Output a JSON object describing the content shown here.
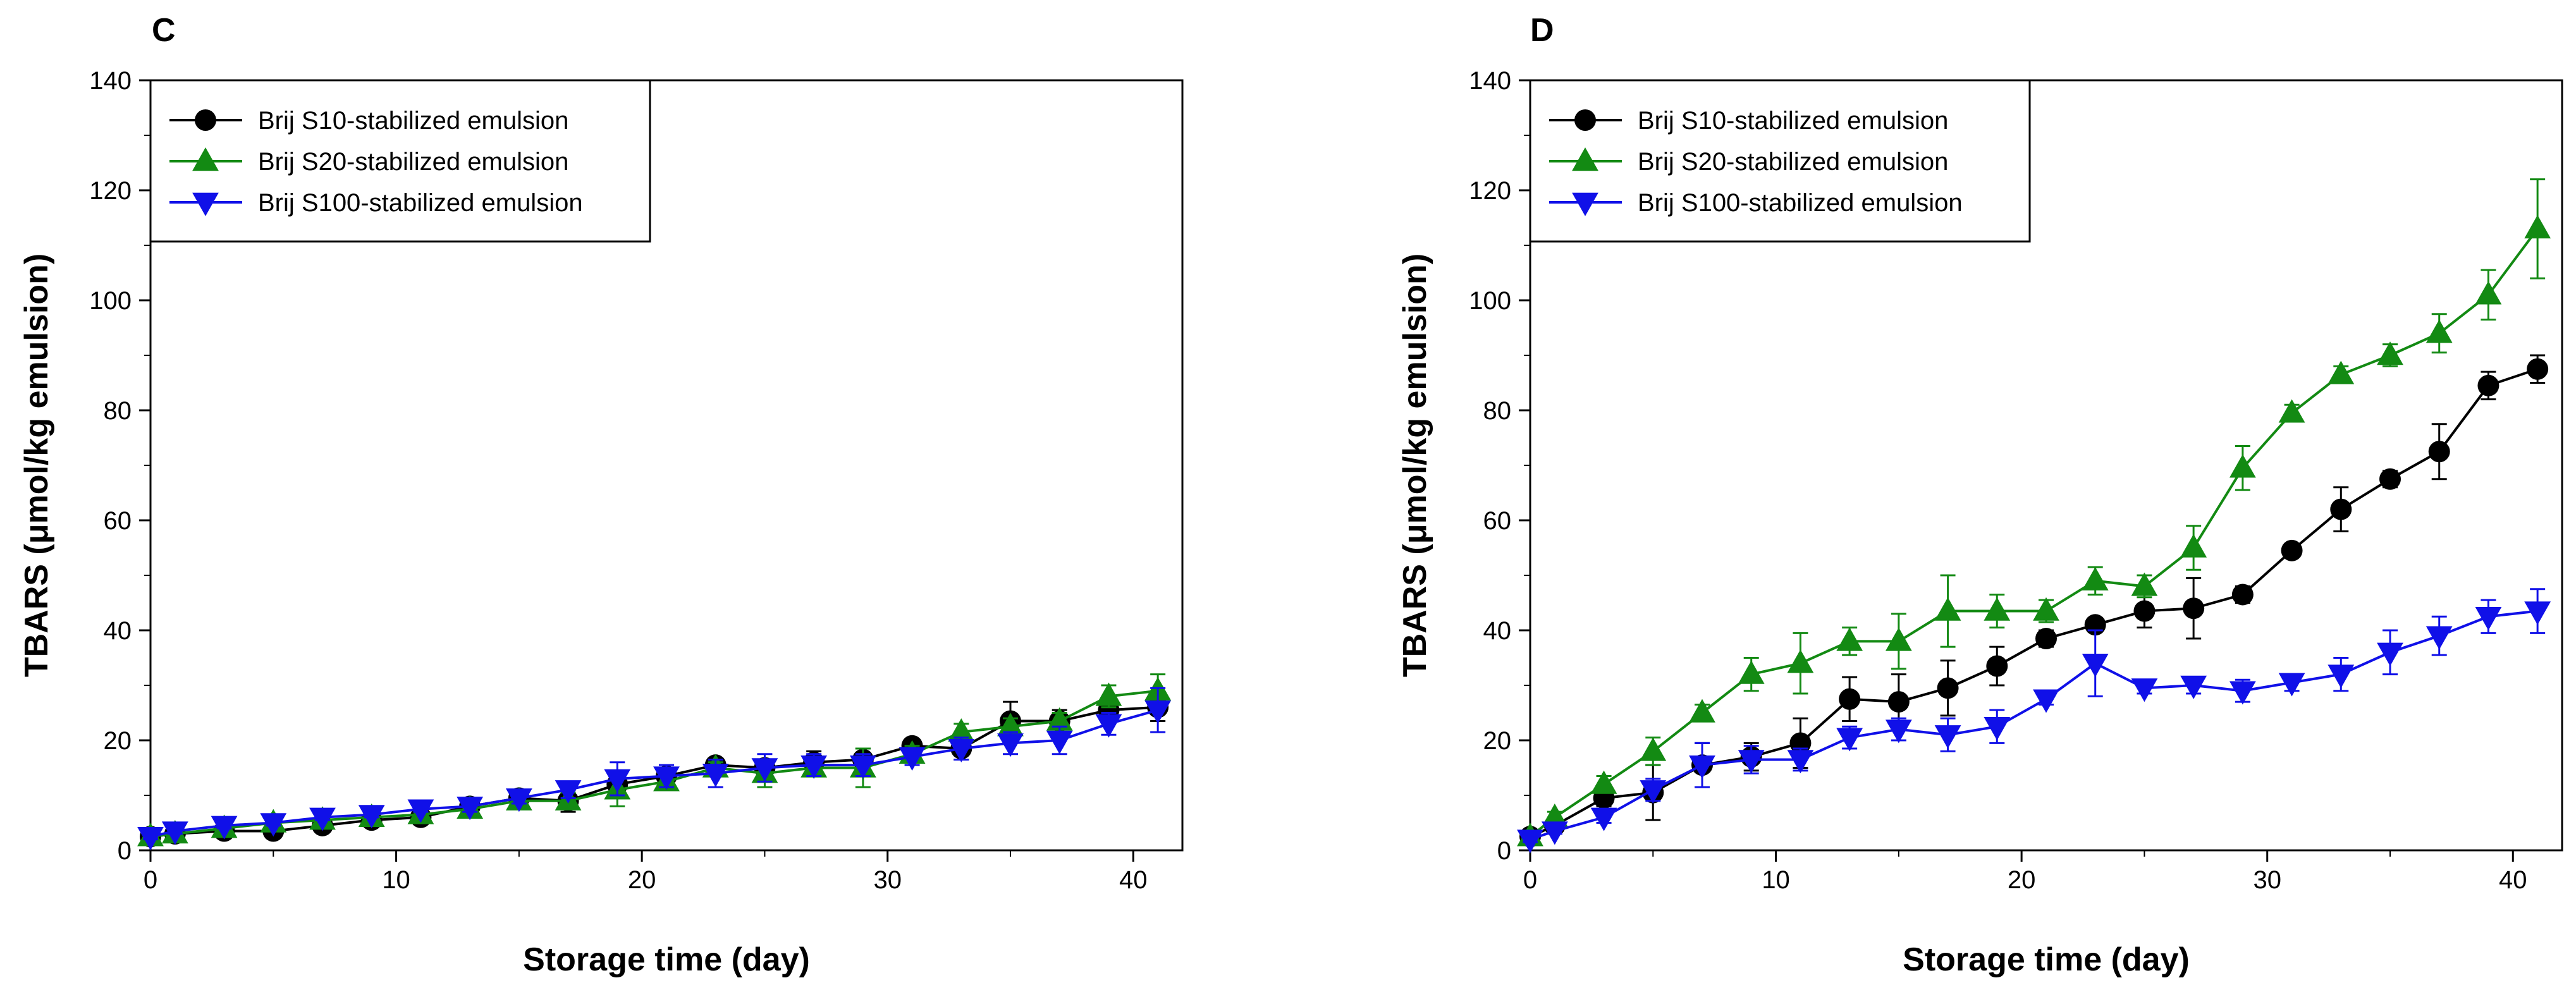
{
  "chart_data": [
    {
      "type": "line",
      "panel_label": "C",
      "xlabel": "Storage time (day)",
      "ylabel": "TBARS (μmol/kg emulsion)",
      "xlim": [
        0,
        42
      ],
      "ylim": [
        0,
        140
      ],
      "xticks": [
        0,
        10,
        20,
        30,
        40
      ],
      "yticks": [
        0,
        20,
        40,
        60,
        80,
        100,
        120,
        140
      ],
      "legend_position": "top-left",
      "grid": false,
      "series": [
        {
          "name": "Brij S10-stabilized emulsion",
          "color": "#000000",
          "marker": "circle",
          "x": [
            0,
            1,
            3,
            5,
            7,
            9,
            11,
            13,
            15,
            17,
            19,
            21,
            23,
            25,
            27,
            29,
            31,
            33,
            35,
            37,
            39,
            41
          ],
          "y": [
            2.5,
            3.0,
            3.5,
            3.5,
            4.5,
            5.5,
            6.0,
            8.0,
            9.5,
            9.0,
            12.0,
            13.5,
            15.5,
            15.0,
            16.0,
            16.5,
            19.0,
            18.5,
            23.5,
            23.5,
            25.5,
            26.0
          ],
          "err": [
            0.5,
            0.5,
            0.5,
            0.5,
            0.5,
            0.5,
            0.5,
            1.0,
            1.5,
            2.0,
            1.5,
            1.5,
            1.0,
            1.5,
            2.0,
            2.0,
            1.0,
            2.0,
            3.5,
            2.0,
            2.0,
            2.5
          ]
        },
        {
          "name": "Brij S20-stabilized emulsion",
          "color": "#138a13",
          "marker": "triangle-up",
          "x": [
            0,
            1,
            3,
            5,
            7,
            9,
            11,
            13,
            15,
            17,
            19,
            21,
            23,
            25,
            27,
            29,
            31,
            33,
            35,
            37,
            39,
            41
          ],
          "y": [
            2.5,
            3.0,
            4.0,
            5.0,
            5.5,
            6.0,
            6.5,
            7.5,
            9.0,
            9.0,
            11.0,
            12.5,
            15.0,
            14.0,
            15.0,
            15.0,
            17.5,
            21.5,
            22.5,
            23.5,
            28.0,
            29.0
          ],
          "err": [
            0.5,
            0.5,
            0.5,
            0.5,
            0.5,
            0.5,
            0.5,
            1.0,
            1.0,
            1.5,
            3.0,
            1.5,
            1.0,
            2.5,
            1.5,
            3.5,
            1.5,
            1.5,
            1.5,
            1.5,
            2.0,
            3.0
          ]
        },
        {
          "name": "Brij S100-stabilized emulsion",
          "color": "#1010e8",
          "marker": "triangle-down",
          "x": [
            0,
            1,
            3,
            5,
            7,
            9,
            11,
            13,
            15,
            17,
            19,
            21,
            23,
            25,
            27,
            29,
            31,
            33,
            35,
            37,
            39,
            41
          ],
          "y": [
            2.5,
            3.5,
            4.5,
            5.0,
            6.0,
            6.5,
            7.5,
            8.0,
            9.5,
            11.0,
            13.0,
            13.5,
            14.0,
            15.0,
            15.5,
            15.5,
            17.0,
            18.5,
            19.5,
            20.0,
            23.0,
            25.5
          ],
          "err": [
            0.5,
            0.5,
            0.5,
            0.5,
            0.5,
            0.5,
            0.5,
            1.0,
            1.0,
            1.5,
            3.0,
            2.0,
            2.5,
            2.5,
            2.0,
            2.0,
            1.5,
            2.0,
            2.0,
            2.5,
            2.0,
            4.0
          ]
        }
      ]
    },
    {
      "type": "line",
      "panel_label": "D",
      "xlabel": "Storage time (day)",
      "ylabel": "TBARS (μmol/kg emulsion)",
      "xlim": [
        0,
        42
      ],
      "ylim": [
        0,
        140
      ],
      "xticks": [
        0,
        10,
        20,
        30,
        40
      ],
      "yticks": [
        0,
        20,
        40,
        60,
        80,
        100,
        120,
        140
      ],
      "legend_position": "top-left",
      "grid": false,
      "series": [
        {
          "name": "Brij S10-stabilized emulsion",
          "color": "#000000",
          "marker": "circle",
          "x": [
            0,
            1,
            3,
            5,
            7,
            9,
            11,
            13,
            15,
            17,
            19,
            21,
            23,
            25,
            27,
            29,
            31,
            33,
            35,
            37,
            39,
            41
          ],
          "y": [
            2.5,
            4.5,
            9.5,
            10.5,
            15.5,
            17.0,
            19.5,
            27.5,
            27.0,
            29.5,
            33.5,
            38.5,
            41.0,
            43.5,
            44.0,
            46.5,
            54.5,
            62.0,
            67.5,
            72.5,
            84.5,
            87.5
          ],
          "err": [
            0.5,
            1.0,
            1.5,
            5.0,
            4.0,
            2.5,
            4.5,
            4.0,
            5.0,
            5.0,
            3.5,
            1.5,
            1.0,
            3.0,
            5.5,
            1.5,
            1.0,
            4.0,
            1.5,
            5.0,
            2.5,
            2.5
          ]
        },
        {
          "name": "Brij S20-stabilized emulsion",
          "color": "#138a13",
          "marker": "triangle-up",
          "x": [
            0,
            1,
            3,
            5,
            7,
            9,
            11,
            13,
            15,
            17,
            19,
            21,
            23,
            25,
            27,
            29,
            31,
            33,
            35,
            37,
            39,
            41
          ],
          "y": [
            2.5,
            6.0,
            12.0,
            18.0,
            25.0,
            32.0,
            34.0,
            38.0,
            38.0,
            43.5,
            43.5,
            43.5,
            49.0,
            48.0,
            55.0,
            69.5,
            79.5,
            86.5,
            90.0,
            94.0,
            101.0,
            113.0
          ],
          "err": [
            0.5,
            1.0,
            1.5,
            2.5,
            1.5,
            3.0,
            5.5,
            2.5,
            5.0,
            6.5,
            3.0,
            2.0,
            2.5,
            2.0,
            4.0,
            4.0,
            1.5,
            1.5,
            2.0,
            3.5,
            4.5,
            9.0
          ]
        },
        {
          "name": "Brij S100-stabilized emulsion",
          "color": "#1010e8",
          "marker": "triangle-down",
          "x": [
            0,
            1,
            3,
            5,
            7,
            9,
            11,
            13,
            15,
            17,
            19,
            21,
            23,
            25,
            27,
            29,
            31,
            33,
            35,
            37,
            39,
            41
          ],
          "y": [
            2.0,
            3.5,
            6.0,
            11.0,
            15.5,
            16.5,
            16.5,
            20.5,
            22.0,
            21.0,
            22.5,
            27.5,
            34.0,
            29.5,
            30.0,
            29.0,
            30.5,
            32.0,
            36.0,
            39.0,
            42.5,
            43.5
          ],
          "err": [
            0.5,
            0.5,
            1.0,
            2.0,
            4.0,
            2.5,
            2.0,
            2.0,
            2.0,
            3.0,
            3.0,
            1.0,
            6.0,
            1.0,
            1.5,
            2.0,
            1.5,
            3.0,
            4.0,
            3.5,
            3.0,
            4.0
          ]
        }
      ]
    }
  ]
}
